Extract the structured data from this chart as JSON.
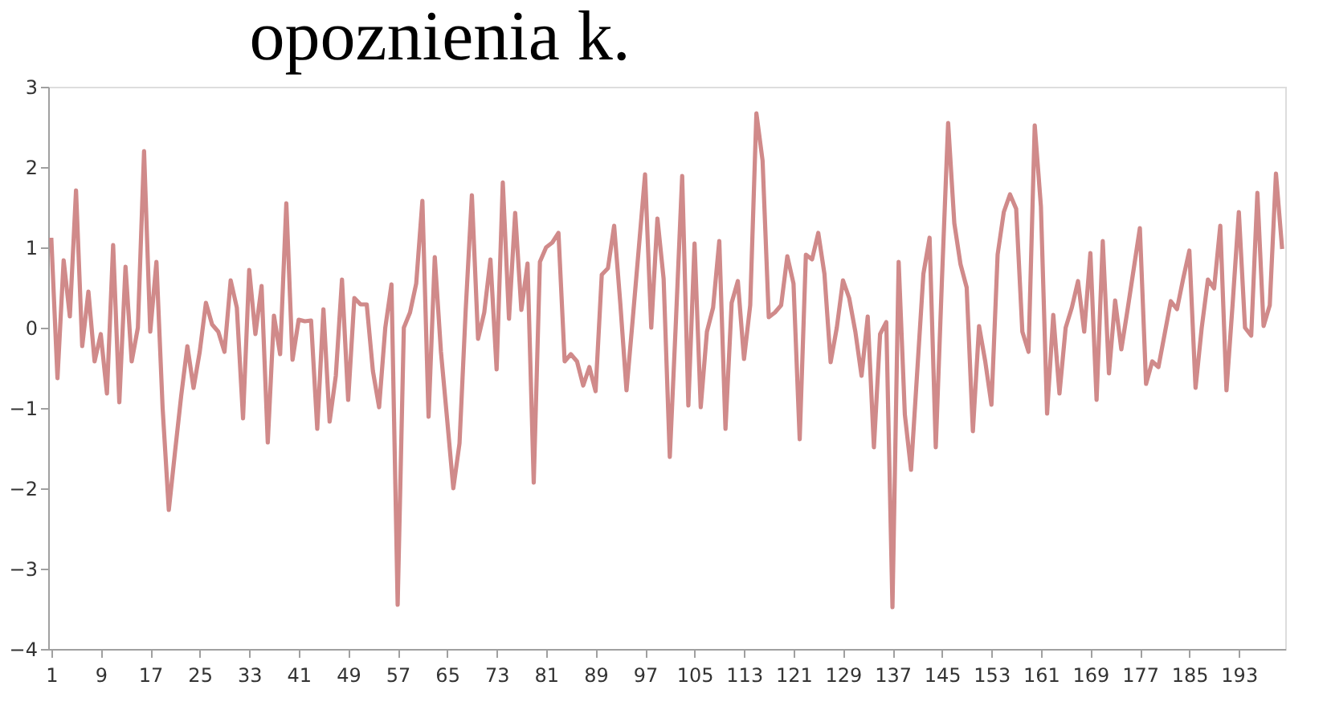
{
  "chart_data": {
    "type": "line",
    "title": "opoznienia k.",
    "x": [
      1,
      2,
      3,
      4,
      5,
      6,
      7,
      8,
      9,
      10,
      11,
      12,
      13,
      14,
      15,
      16,
      17,
      18,
      19,
      20,
      21,
      22,
      23,
      24,
      25,
      26,
      27,
      28,
      29,
      30,
      31,
      32,
      33,
      34,
      35,
      36,
      37,
      38,
      39,
      40,
      41,
      42,
      43,
      44,
      45,
      46,
      47,
      48,
      49,
      50,
      51,
      52,
      53,
      54,
      55,
      56,
      57,
      58,
      59,
      60,
      61,
      62,
      63,
      64,
      65,
      66,
      67,
      68,
      69,
      70,
      71,
      72,
      73,
      74,
      75,
      76,
      77,
      78,
      79,
      80,
      81,
      82,
      83,
      84,
      85,
      86,
      87,
      88,
      89,
      90,
      91,
      92,
      93,
      94,
      95,
      96,
      97,
      98,
      99,
      100,
      101,
      102,
      103,
      104,
      105,
      106,
      107,
      108,
      109,
      110,
      111,
      112,
      113,
      114,
      115,
      116,
      117,
      118,
      119,
      120,
      121,
      122,
      123,
      124,
      125,
      126,
      127,
      128,
      129,
      130,
      131,
      132,
      133,
      134,
      135,
      136,
      137,
      138,
      139,
      140,
      141,
      142,
      143,
      144,
      145,
      146,
      147,
      148,
      149,
      150,
      151,
      152,
      153,
      154,
      155,
      156,
      157,
      158,
      159,
      160,
      161,
      162,
      163,
      164,
      165,
      166,
      167,
      168,
      169,
      170,
      171,
      172,
      173,
      174,
      175,
      176,
      177,
      178,
      179,
      180,
      181,
      182,
      183,
      184,
      185,
      186,
      187,
      188,
      189,
      190,
      191,
      192,
      193,
      194,
      195,
      196,
      197,
      198,
      199,
      200
    ],
    "series": [
      {
        "color": "#d08a8a",
        "values": [
          1.12,
          -0.63,
          0.84,
          0.14,
          1.71,
          -0.23,
          0.45,
          -0.42,
          -0.08,
          -0.82,
          1.03,
          -0.93,
          0.76,
          -0.42,
          0.0,
          2.2,
          -0.05,
          0.82,
          -1.0,
          -2.27,
          -1.55,
          -0.85,
          -0.23,
          -0.75,
          -0.3,
          0.31,
          0.04,
          -0.05,
          -0.3,
          0.59,
          0.25,
          -1.13,
          0.72,
          -0.08,
          0.52,
          -1.43,
          0.15,
          -0.33,
          1.55,
          -0.4,
          0.1,
          0.08,
          0.09,
          -1.26,
          0.23,
          -1.17,
          -0.6,
          0.6,
          -0.9,
          0.37,
          0.29,
          0.29,
          -0.54,
          -0.99,
          0.0,
          0.54,
          -3.45,
          0.0,
          0.19,
          0.55,
          1.58,
          -1.11,
          0.88,
          -0.3,
          -1.14,
          -2.0,
          -1.44,
          0.22,
          1.65,
          -0.14,
          0.19,
          0.85,
          -0.52,
          1.81,
          0.11,
          1.43,
          0.22,
          0.8,
          -1.93,
          0.82,
          1.0,
          1.06,
          1.18,
          -0.42,
          -0.33,
          -0.42,
          -0.72,
          -0.49,
          -0.79,
          0.66,
          0.74,
          1.27,
          0.3,
          -0.78,
          0.1,
          1.0,
          1.91,
          0.0,
          1.36,
          0.61,
          -1.61,
          0.1,
          1.89,
          -0.97,
          1.05,
          -0.99,
          -0.05,
          0.25,
          1.08,
          -1.26,
          0.31,
          0.58,
          -0.39,
          0.28,
          2.67,
          2.08,
          0.13,
          0.19,
          0.28,
          0.89,
          0.55,
          -1.39,
          0.91,
          0.85,
          1.18,
          0.67,
          -0.43,
          0.0,
          0.59,
          0.37,
          -0.05,
          -0.6,
          0.14,
          -1.49,
          -0.08,
          0.07,
          -3.48,
          0.82,
          -1.08,
          -1.77,
          -0.55,
          0.67,
          1.12,
          -1.49,
          0.6,
          2.55,
          1.3,
          0.79,
          0.5,
          -1.29,
          0.02,
          -0.42,
          -0.96,
          0.91,
          1.44,
          1.66,
          1.48,
          -0.05,
          -0.3,
          2.52,
          1.51,
          -1.07,
          0.16,
          -0.82,
          0.0,
          0.25,
          0.58,
          -0.05,
          0.93,
          -0.9,
          1.08,
          -0.57,
          0.34,
          -0.27,
          0.22,
          0.73,
          1.24,
          -0.7,
          -0.42,
          -0.49,
          -0.08,
          0.33,
          0.23,
          0.61,
          0.96,
          -0.75,
          0.0,
          0.6,
          0.49,
          1.27,
          -0.78,
          0.3,
          1.44,
          0.0,
          -0.1,
          1.68,
          0.02,
          0.28,
          1.92,
          0.98
        ]
      }
    ],
    "xlim": [
      0.5,
      200.5
    ],
    "xticks": [
      1,
      9,
      17,
      25,
      33,
      41,
      49,
      57,
      65,
      73,
      81,
      89,
      97,
      105,
      113,
      121,
      129,
      137,
      145,
      153,
      161,
      169,
      177,
      185,
      193
    ],
    "ylim": [
      -4,
      3
    ],
    "yticks": [
      -4,
      -3,
      -2,
      -1,
      0,
      1,
      2,
      3
    ],
    "grid": false,
    "marker": "none",
    "line_style": "solid"
  }
}
